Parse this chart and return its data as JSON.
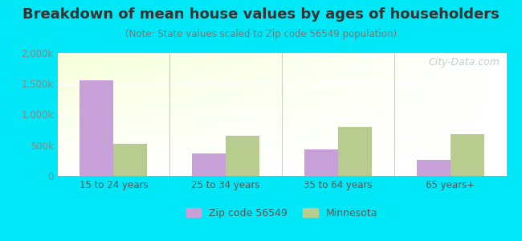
{
  "title": "Breakdown of mean house values by ages of householders",
  "subtitle": "(Note: State values scaled to Zip code 56549 population)",
  "categories": [
    "15 to 24 years",
    "25 to 34 years",
    "35 to 64 years",
    "65 years+"
  ],
  "zip_values": [
    1560000,
    370000,
    430000,
    260000
  ],
  "state_values": [
    520000,
    650000,
    800000,
    680000
  ],
  "zip_color": "#c8a0d8",
  "state_color": "#b8cc90",
  "background_outer": "#00e8f8",
  "ylim": [
    0,
    2000000
  ],
  "yticks": [
    0,
    500000,
    1000000,
    1500000,
    2000000
  ],
  "ytick_labels": [
    "0",
    "500k",
    "1,000k",
    "1,500k",
    "2,000k"
  ],
  "legend_zip_label": "Zip code 56549",
  "legend_state_label": "Minnesota",
  "bar_width": 0.3,
  "watermark": "City-Data.com",
  "separator_color": "#aaddcc",
  "grid_color": "#ddeecc",
  "title_fontsize": 13,
  "subtitle_fontsize": 8.5,
  "tick_fontsize": 8.5
}
